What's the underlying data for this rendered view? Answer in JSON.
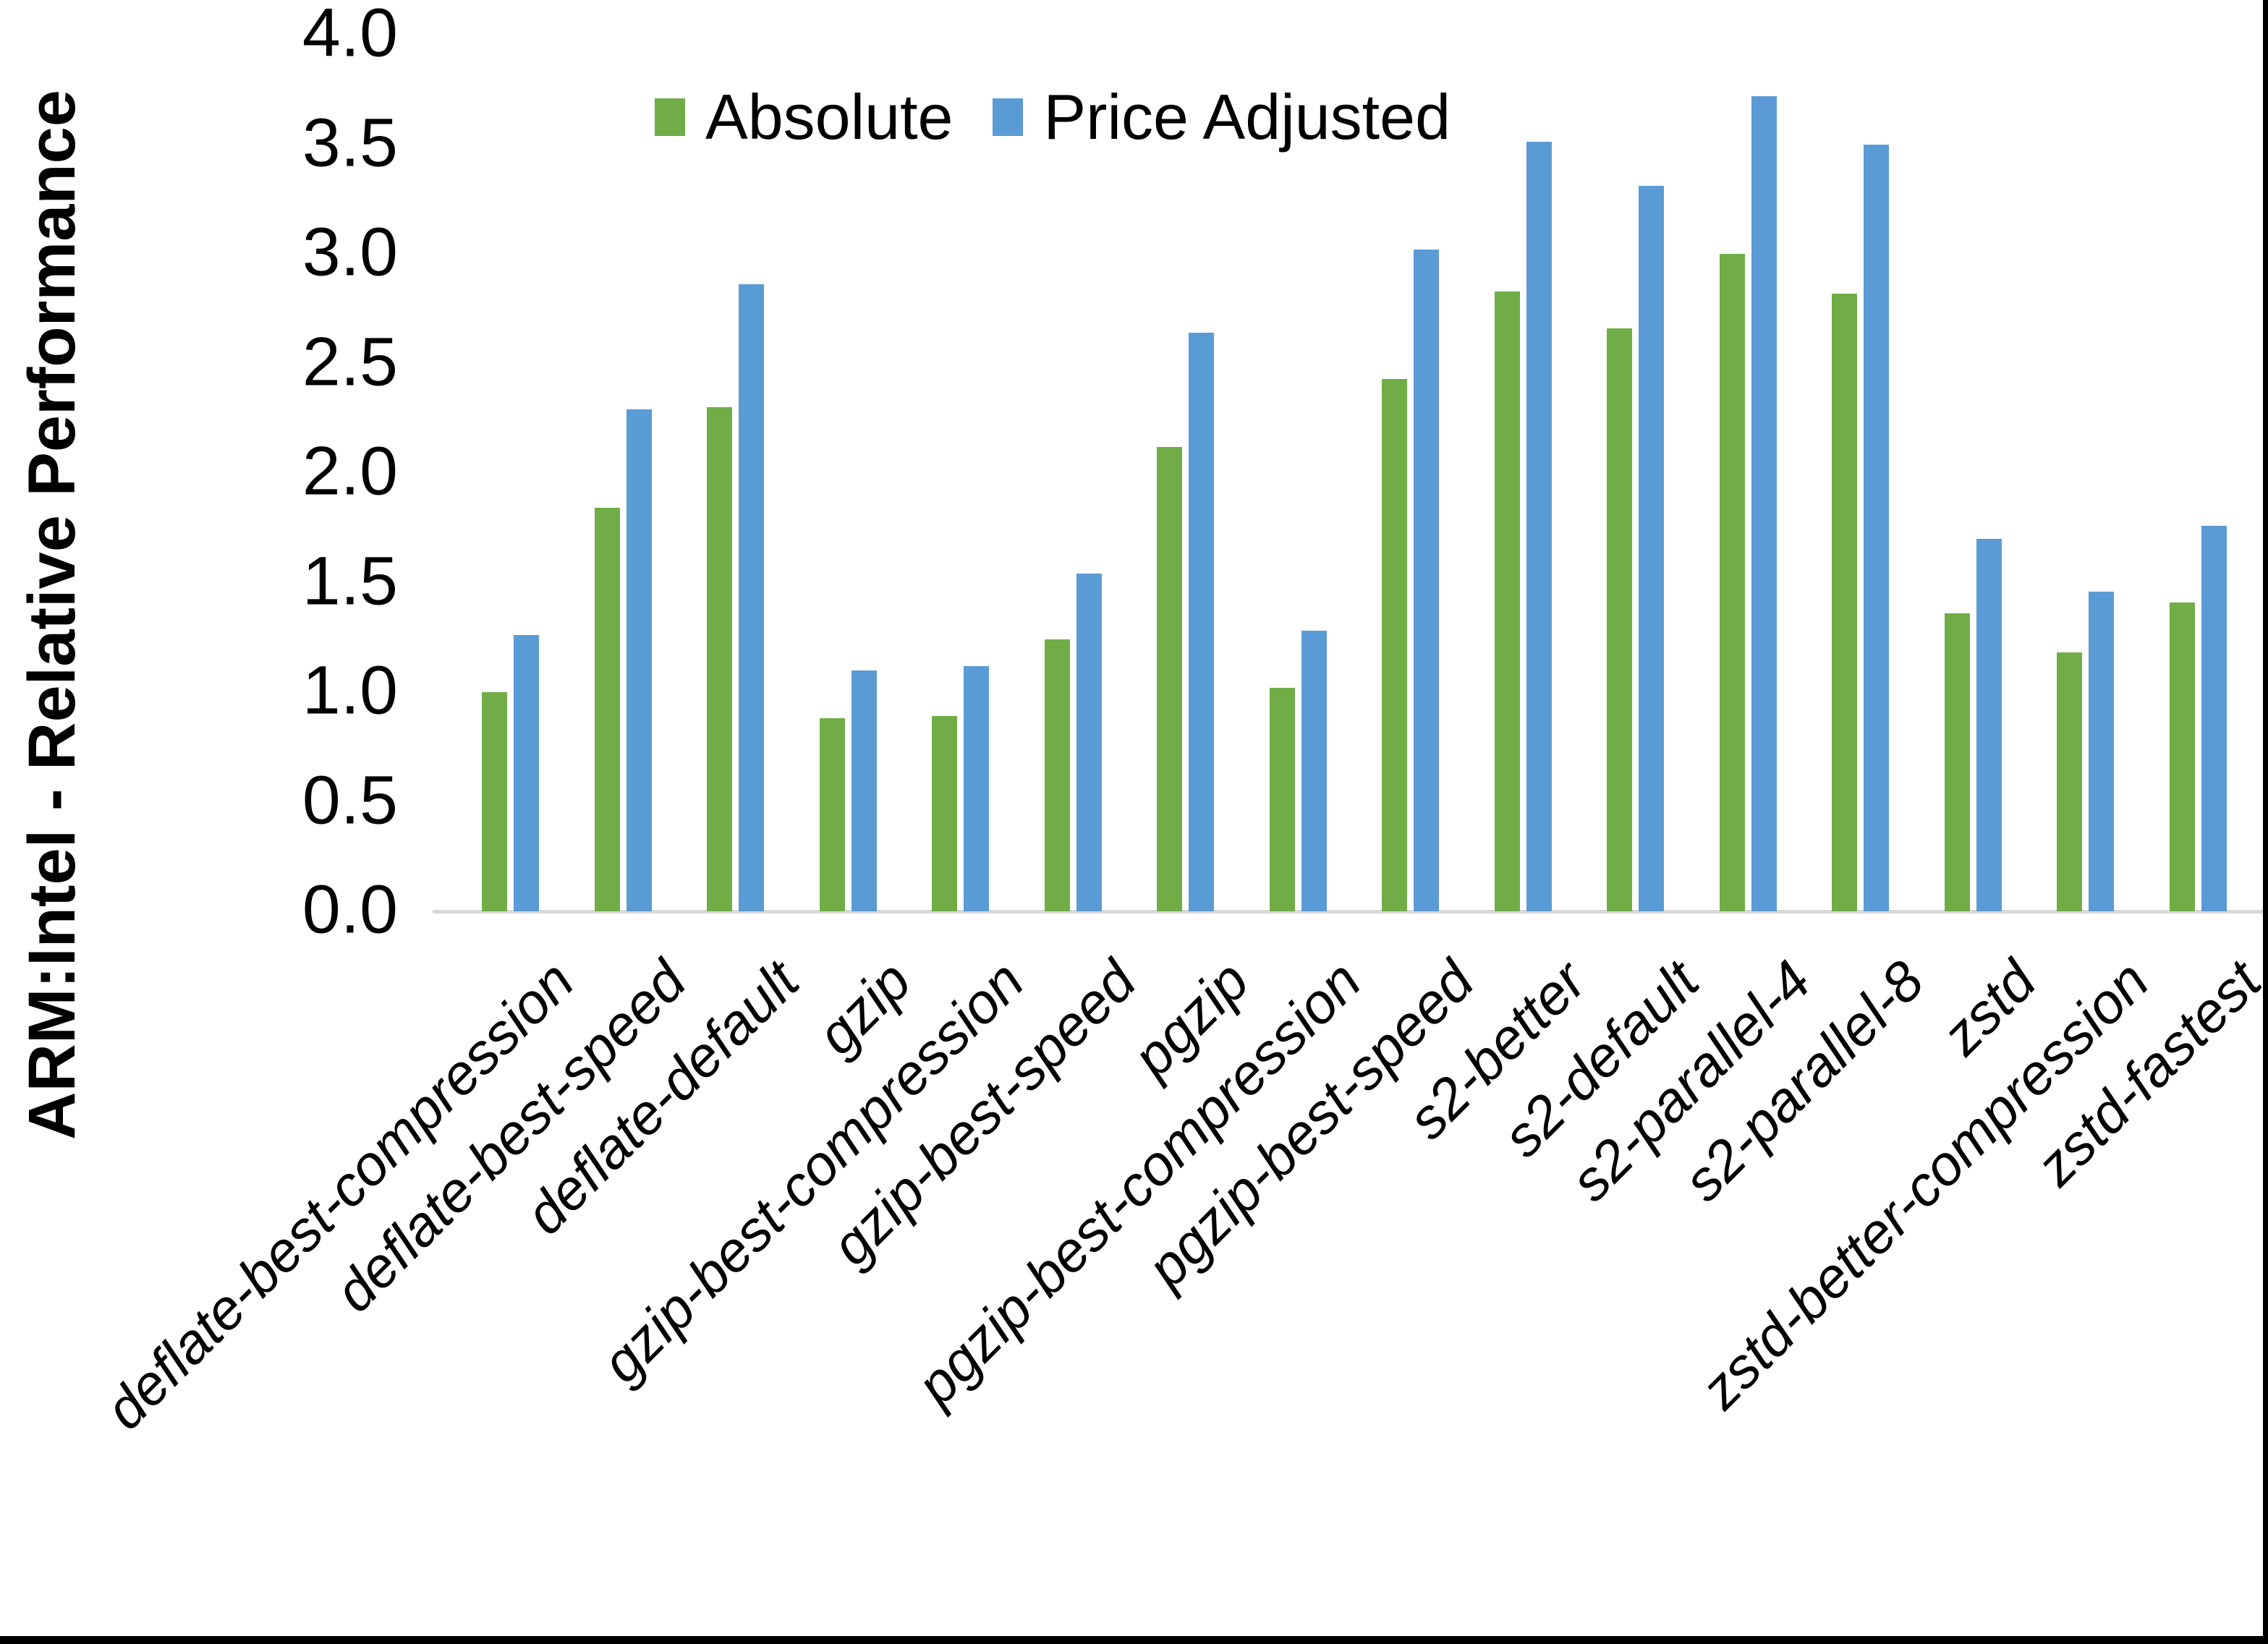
{
  "chart_data": {
    "type": "bar",
    "title": "",
    "xlabel": "",
    "ylabel": "ARM:Intel - Relative Performance",
    "ylim": [
      0.0,
      4.0
    ],
    "ytick_step": 0.5,
    "ytick_labels": [
      "0.0",
      "0.5",
      "1.0",
      "1.5",
      "2.0",
      "2.5",
      "3.0",
      "3.5",
      "4.0"
    ],
    "grid": false,
    "legend_position": "top-center",
    "categories": [
      "deflate-best-compression",
      "deflate-best-speed",
      "deflate-default",
      "gzip",
      "gzip-best-compression",
      "gzip-best-speed",
      "pgzip",
      "pgzip-best-compression",
      "pgzip-best-speed",
      "s2-better",
      "s2-default",
      "s2-parallel-4",
      "s2-parallel-8",
      "zstd",
      "zstd-better-compression",
      "zstd-fastest"
    ],
    "series": [
      {
        "name": "Absolute",
        "color": "#70AD47",
        "values": [
          1.0,
          1.84,
          2.3,
          0.88,
          0.89,
          1.24,
          2.12,
          1.02,
          2.43,
          2.83,
          2.66,
          3.0,
          2.82,
          1.36,
          1.18,
          1.41
        ]
      },
      {
        "name": "Price Adjusted",
        "color": "#5B9BD5",
        "values": [
          1.26,
          2.29,
          2.86,
          1.1,
          1.12,
          1.54,
          2.64,
          1.28,
          3.02,
          3.51,
          3.31,
          3.72,
          3.5,
          1.7,
          1.46,
          1.76
        ]
      }
    ],
    "axis_line_color": "#d9d9d9",
    "frame_border_color": "#000000"
  }
}
